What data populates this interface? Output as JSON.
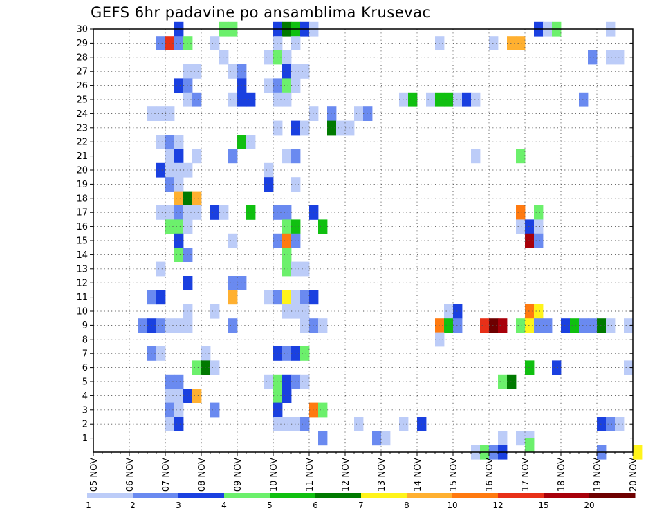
{
  "title": "GEFS 6hr padavine po ansamblima Krusevac",
  "colors": {
    "levels": [
      "#bcccf8",
      "#6a8af0",
      "#1a40e0",
      "#6cf06c",
      "#10c010",
      "#007a00",
      "#fff41a",
      "#ffb030",
      "#ff7a10",
      "#e83018",
      "#a8000a",
      "#6e0000"
    ]
  },
  "chart_data": {
    "type": "heatmap",
    "title": "GEFS 6hr padavine po ansamblima Krusevac",
    "x_ticks": [
      "05 NOV",
      "06 NOV",
      "07 NOV",
      "08 NOV",
      "09 NOV",
      "10 NOV",
      "11 NOV",
      "12 NOV",
      "13 NOV",
      "14 NOV",
      "15 NOV",
      "16 NOV",
      "17 NOV",
      "18 NOV",
      "19 NOV",
      "20 NOV"
    ],
    "y_ticks": [
      "1",
      "2",
      "3",
      "4",
      "5",
      "6",
      "7",
      "8",
      "9",
      "10",
      "11",
      "12",
      "13",
      "14",
      "15",
      "16",
      "17",
      "18",
      "19",
      "20",
      "21",
      "22",
      "23",
      "24",
      "25",
      "26",
      "27",
      "28",
      "29",
      "30"
    ],
    "xlim": [
      "05 NOV 00z",
      "20 NOV 00z"
    ],
    "x_step": "6hr",
    "ylim": [
      0,
      30
    ],
    "grid": true,
    "colorbar_levels": [
      "1",
      "2",
      "3",
      "4",
      "5",
      "6",
      "7",
      "8",
      "10",
      "12",
      "15",
      "20"
    ],
    "cell_format": "[ensemble member, 6-hourly step index from 05 NOV 00z, colour level index 1-12]",
    "cells": [
      [
        30,
        9,
        3
      ],
      [
        30,
        14,
        4
      ],
      [
        30,
        15,
        4
      ],
      [
        30,
        20,
        3
      ],
      [
        30,
        21,
        6
      ],
      [
        30,
        22,
        5
      ],
      [
        30,
        23,
        3
      ],
      [
        30,
        24,
        1
      ],
      [
        30,
        49,
        3
      ],
      [
        30,
        50,
        1
      ],
      [
        30,
        51,
        4
      ],
      [
        30,
        57,
        1
      ],
      [
        29,
        7,
        2
      ],
      [
        29,
        8,
        10
      ],
      [
        29,
        9,
        2
      ],
      [
        29,
        10,
        4
      ],
      [
        29,
        13,
        1
      ],
      [
        29,
        20,
        1
      ],
      [
        29,
        22,
        1
      ],
      [
        29,
        38,
        1
      ],
      [
        29,
        44,
        1
      ],
      [
        29,
        46,
        8
      ],
      [
        29,
        47,
        8
      ],
      [
        28,
        14,
        1
      ],
      [
        28,
        19,
        1
      ],
      [
        28,
        20,
        4
      ],
      [
        28,
        21,
        1
      ],
      [
        28,
        55,
        2
      ],
      [
        28,
        57,
        1
      ],
      [
        28,
        58,
        1
      ],
      [
        27,
        10,
        1
      ],
      [
        27,
        11,
        1
      ],
      [
        27,
        15,
        1
      ],
      [
        27,
        16,
        2
      ],
      [
        27,
        21,
        3
      ],
      [
        27,
        22,
        1
      ],
      [
        27,
        23,
        1
      ],
      [
        26,
        9,
        3
      ],
      [
        26,
        10,
        2
      ],
      [
        26,
        16,
        3
      ],
      [
        26,
        19,
        1
      ],
      [
        26,
        20,
        2
      ],
      [
        26,
        21,
        4
      ],
      [
        26,
        22,
        1
      ],
      [
        25,
        10,
        1
      ],
      [
        25,
        11,
        2
      ],
      [
        25,
        15,
        1
      ],
      [
        25,
        16,
        3
      ],
      [
        25,
        17,
        3
      ],
      [
        25,
        20,
        1
      ],
      [
        25,
        21,
        1
      ],
      [
        25,
        34,
        1
      ],
      [
        25,
        35,
        5
      ],
      [
        25,
        37,
        1
      ],
      [
        25,
        38,
        5
      ],
      [
        25,
        39,
        5
      ],
      [
        25,
        40,
        1
      ],
      [
        25,
        41,
        3
      ],
      [
        25,
        42,
        1
      ],
      [
        25,
        54,
        2
      ],
      [
        24,
        6,
        1
      ],
      [
        24,
        7,
        1
      ],
      [
        24,
        8,
        1
      ],
      [
        24,
        24,
        1
      ],
      [
        24,
        26,
        2
      ],
      [
        24,
        29,
        1
      ],
      [
        24,
        30,
        2
      ],
      [
        23,
        20,
        1
      ],
      [
        23,
        22,
        3
      ],
      [
        23,
        23,
        1
      ],
      [
        23,
        26,
        6
      ],
      [
        23,
        27,
        1
      ],
      [
        23,
        28,
        1
      ],
      [
        22,
        7,
        1
      ],
      [
        22,
        8,
        2
      ],
      [
        22,
        9,
        1
      ],
      [
        22,
        16,
        5
      ],
      [
        22,
        17,
        1
      ],
      [
        21,
        8,
        1
      ],
      [
        21,
        9,
        3
      ],
      [
        21,
        11,
        1
      ],
      [
        21,
        15,
        2
      ],
      [
        21,
        21,
        1
      ],
      [
        21,
        22,
        2
      ],
      [
        21,
        42,
        1
      ],
      [
        21,
        47,
        4
      ],
      [
        20,
        7,
        3
      ],
      [
        20,
        8,
        1
      ],
      [
        20,
        9,
        1
      ],
      [
        20,
        10,
        1
      ],
      [
        20,
        19,
        1
      ],
      [
        19,
        8,
        2
      ],
      [
        19,
        9,
        1
      ],
      [
        19,
        19,
        3
      ],
      [
        19,
        22,
        1
      ],
      [
        18,
        9,
        8
      ],
      [
        18,
        10,
        6
      ],
      [
        18,
        11,
        8
      ],
      [
        17,
        7,
        1
      ],
      [
        17,
        8,
        1
      ],
      [
        17,
        9,
        2
      ],
      [
        17,
        10,
        1
      ],
      [
        17,
        11,
        1
      ],
      [
        17,
        13,
        3
      ],
      [
        17,
        14,
        1
      ],
      [
        17,
        17,
        5
      ],
      [
        17,
        20,
        2
      ],
      [
        17,
        21,
        2
      ],
      [
        17,
        24,
        3
      ],
      [
        17,
        47,
        9
      ],
      [
        17,
        49,
        4
      ],
      [
        16,
        8,
        4
      ],
      [
        16,
        9,
        4
      ],
      [
        16,
        10,
        1
      ],
      [
        16,
        21,
        4
      ],
      [
        16,
        22,
        5
      ],
      [
        16,
        25,
        5
      ],
      [
        16,
        47,
        1
      ],
      [
        16,
        48,
        3
      ],
      [
        16,
        49,
        1
      ],
      [
        15,
        9,
        3
      ],
      [
        15,
        15,
        1
      ],
      [
        15,
        20,
        2
      ],
      [
        15,
        21,
        9
      ],
      [
        15,
        22,
        2
      ],
      [
        15,
        48,
        11
      ],
      [
        15,
        49,
        2
      ],
      [
        14,
        9,
        4
      ],
      [
        14,
        10,
        2
      ],
      [
        14,
        21,
        4
      ],
      [
        13,
        7,
        1
      ],
      [
        13,
        21,
        4
      ],
      [
        13,
        22,
        1
      ],
      [
        13,
        23,
        1
      ],
      [
        12,
        10,
        3
      ],
      [
        12,
        15,
        2
      ],
      [
        12,
        16,
        2
      ],
      [
        11,
        6,
        2
      ],
      [
        11,
        7,
        3
      ],
      [
        11,
        15,
        8
      ],
      [
        11,
        19,
        1
      ],
      [
        11,
        20,
        2
      ],
      [
        11,
        21,
        7
      ],
      [
        11,
        22,
        1
      ],
      [
        11,
        23,
        2
      ],
      [
        11,
        24,
        3
      ],
      [
        10,
        10,
        1
      ],
      [
        10,
        13,
        1
      ],
      [
        10,
        21,
        1
      ],
      [
        10,
        22,
        1
      ],
      [
        10,
        23,
        1
      ],
      [
        10,
        39,
        1
      ],
      [
        10,
        40,
        3
      ],
      [
        10,
        48,
        9
      ],
      [
        10,
        49,
        7
      ],
      [
        9,
        5,
        2
      ],
      [
        9,
        6,
        3
      ],
      [
        9,
        7,
        2
      ],
      [
        9,
        8,
        1
      ],
      [
        9,
        9,
        1
      ],
      [
        9,
        10,
        1
      ],
      [
        9,
        15,
        2
      ],
      [
        9,
        23,
        1
      ],
      [
        9,
        24,
        2
      ],
      [
        9,
        25,
        1
      ],
      [
        9,
        38,
        9
      ],
      [
        9,
        39,
        5
      ],
      [
        9,
        40,
        2
      ],
      [
        9,
        43,
        10
      ],
      [
        9,
        44,
        12
      ],
      [
        9,
        45,
        11
      ],
      [
        9,
        47,
        4
      ],
      [
        9,
        48,
        7
      ],
      [
        9,
        49,
        2
      ],
      [
        9,
        50,
        2
      ],
      [
        9,
        52,
        3
      ],
      [
        9,
        53,
        5
      ],
      [
        9,
        54,
        2
      ],
      [
        9,
        55,
        2
      ],
      [
        9,
        56,
        6
      ],
      [
        9,
        57,
        1
      ],
      [
        9,
        59,
        1
      ],
      [
        8,
        38,
        1
      ],
      [
        7,
        6,
        2
      ],
      [
        7,
        7,
        1
      ],
      [
        7,
        12,
        1
      ],
      [
        7,
        20,
        3
      ],
      [
        7,
        21,
        2
      ],
      [
        7,
        22,
        3
      ],
      [
        7,
        23,
        4
      ],
      [
        6,
        11,
        4
      ],
      [
        6,
        12,
        6
      ],
      [
        6,
        13,
        1
      ],
      [
        6,
        48,
        5
      ],
      [
        6,
        51,
        3
      ],
      [
        6,
        59,
        1
      ],
      [
        5,
        8,
        2
      ],
      [
        5,
        9,
        2
      ],
      [
        5,
        19,
        1
      ],
      [
        5,
        20,
        4
      ],
      [
        5,
        21,
        3
      ],
      [
        5,
        22,
        2
      ],
      [
        5,
        23,
        1
      ],
      [
        5,
        45,
        4
      ],
      [
        5,
        46,
        6
      ],
      [
        4,
        8,
        1
      ],
      [
        4,
        9,
        1
      ],
      [
        4,
        10,
        3
      ],
      [
        4,
        11,
        8
      ],
      [
        4,
        20,
        4
      ],
      [
        4,
        21,
        3
      ],
      [
        3,
        8,
        2
      ],
      [
        3,
        9,
        1
      ],
      [
        3,
        13,
        2
      ],
      [
        3,
        20,
        3
      ],
      [
        3,
        24,
        9
      ],
      [
        3,
        25,
        4
      ],
      [
        2,
        8,
        1
      ],
      [
        2,
        9,
        3
      ],
      [
        2,
        20,
        1
      ],
      [
        2,
        21,
        1
      ],
      [
        2,
        22,
        1
      ],
      [
        2,
        23,
        2
      ],
      [
        2,
        29,
        1
      ],
      [
        2,
        34,
        1
      ],
      [
        2,
        36,
        3
      ],
      [
        2,
        56,
        3
      ],
      [
        2,
        57,
        2
      ],
      [
        2,
        58,
        1
      ],
      [
        1,
        25,
        2
      ],
      [
        1,
        31,
        2
      ],
      [
        1,
        32,
        1
      ],
      [
        1,
        45,
        1
      ],
      [
        1,
        47,
        1
      ],
      [
        1,
        48,
        1
      ],
      [
        0,
        42,
        1
      ],
      [
        0,
        43,
        4
      ],
      [
        0,
        44,
        2
      ],
      [
        0,
        45,
        3
      ],
      [
        0,
        56,
        2
      ],
      [
        0,
        60,
        7
      ],
      [
        0.5,
        48,
        4
      ]
    ]
  }
}
